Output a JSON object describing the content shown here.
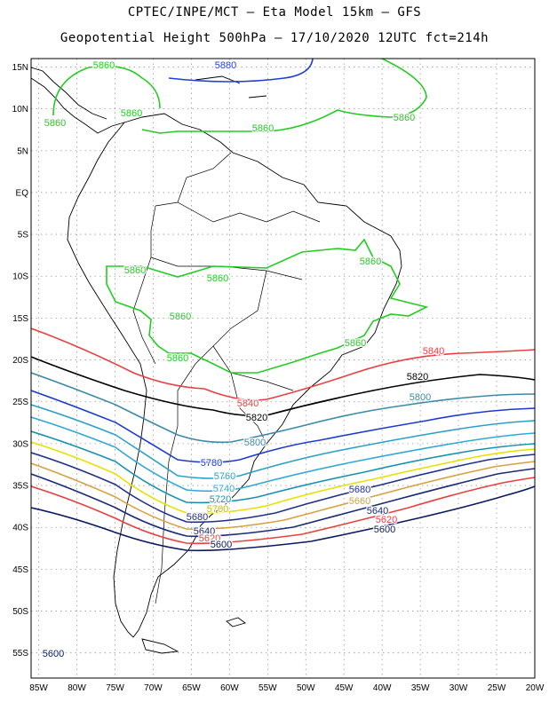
{
  "header": {
    "title_line1": "CPTEC/INPE/MCT –  Eta Model 15km – GFS",
    "title_line2": "Geopotential Height 500hPa – 17/10/2020 12UTC fct=214h"
  },
  "axes": {
    "lat_labels": [
      "15N",
      "10N",
      "5N",
      "EQ",
      "5S",
      "10S",
      "15S",
      "20S",
      "25S",
      "30S",
      "35S",
      "40S",
      "45S",
      "50S",
      "55S"
    ],
    "lon_labels": [
      "85W",
      "80W",
      "75W",
      "70W",
      "65W",
      "60W",
      "55W",
      "50W",
      "45W",
      "40W",
      "35W",
      "30W",
      "25W",
      "20W"
    ],
    "lat_values": [
      15,
      10,
      5,
      0,
      -5,
      -10,
      -15,
      -20,
      -25,
      -30,
      -35,
      -40,
      -45,
      -50,
      -55
    ],
    "lon_values": [
      -85,
      -80,
      -75,
      -70,
      -65,
      -60,
      -55,
      -50,
      -45,
      -40,
      -35,
      -30,
      -25,
      -20
    ],
    "lat_range": [
      -58,
      16
    ],
    "lon_range": [
      -86,
      -20
    ],
    "grid": "dotted"
  },
  "contours": [
    {
      "label": "5880",
      "color": "#1f3fd6"
    },
    {
      "label": "5860",
      "color": "#22cc22"
    },
    {
      "label": "5840",
      "color": "#e84040"
    },
    {
      "label": "5820",
      "color": "#000000"
    },
    {
      "label": "5800",
      "color": "#3a8aa8"
    },
    {
      "label": "5780",
      "color": "#1a3ad0"
    },
    {
      "label": "5760",
      "color": "#2aa0c8"
    },
    {
      "label": "5740",
      "color": "#30a8d8"
    },
    {
      "label": "5720",
      "color": "#1890b0"
    },
    {
      "label": "5700",
      "color": "#e8e000"
    },
    {
      "label": "5680",
      "color": "#20308a"
    },
    {
      "label": "5660",
      "color": "#d8a040"
    },
    {
      "label": "5640",
      "color": "#1a2a78"
    },
    {
      "label": "5620",
      "color": "#e84040"
    },
    {
      "label": "5600",
      "color": "#0a1a60"
    }
  ],
  "contour_labels": [
    {
      "text": "5860",
      "color": "#22cc22"
    },
    {
      "text": "5880",
      "color": "#1f3fd6"
    },
    {
      "text": "5860",
      "color": "#22cc22"
    },
    {
      "text": "5860",
      "color": "#22cc22"
    },
    {
      "text": "5860",
      "color": "#22cc22"
    },
    {
      "text": "5860",
      "color": "#22cc22"
    },
    {
      "text": "5860",
      "color": "#22cc22"
    },
    {
      "text": "5860",
      "color": "#22cc22"
    },
    {
      "text": "5860",
      "color": "#22cc22"
    },
    {
      "text": "5860",
      "color": "#22cc22"
    },
    {
      "text": "5860",
      "color": "#22cc22"
    },
    {
      "text": "5860",
      "color": "#22cc22"
    },
    {
      "text": "5840",
      "color": "#e84040"
    },
    {
      "text": "5820",
      "color": "#000000"
    },
    {
      "text": "5800",
      "color": "#3a8aa8"
    },
    {
      "text": "5840",
      "color": "#e84040"
    },
    {
      "text": "5820",
      "color": "#000000"
    },
    {
      "text": "5800",
      "color": "#3a8aa8"
    },
    {
      "text": "5780",
      "color": "#1a3ad0"
    },
    {
      "text": "5760",
      "color": "#2aa0c8"
    },
    {
      "text": "5740",
      "color": "#30a8d8"
    },
    {
      "text": "5720",
      "color": "#1890b0"
    },
    {
      "text": "5700",
      "color": "#c8b800"
    },
    {
      "text": "5680",
      "color": "#20308a"
    },
    {
      "text": "5640",
      "color": "#1a2a78"
    },
    {
      "text": "5620",
      "color": "#e84040"
    },
    {
      "text": "5600",
      "color": "#0a1a60"
    },
    {
      "text": "5680",
      "color": "#20308a"
    },
    {
      "text": "5660",
      "color": "#d8a040"
    },
    {
      "text": "5640",
      "color": "#1a2a78"
    },
    {
      "text": "5620",
      "color": "#e84040"
    },
    {
      "text": "5600",
      "color": "#0a1a60"
    },
    {
      "text": "5600",
      "color": "#0a1a60"
    }
  ]
}
